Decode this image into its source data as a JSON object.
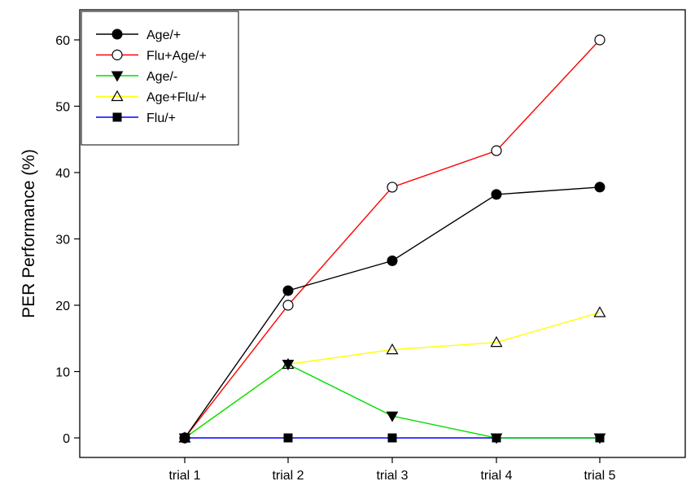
{
  "chart_data": {
    "type": "line",
    "title": "",
    "xlabel": "",
    "ylabel": "PER Performance (%)",
    "categories": [
      "trial 1",
      "trial 2",
      "trial 3",
      "trial 4",
      "trial 5"
    ],
    "ylim": [
      0,
      65
    ],
    "yticks": [
      0,
      10,
      20,
      30,
      40,
      50,
      60
    ],
    "grid": false,
    "legend_position": "top-left",
    "series": [
      {
        "name": "Age/+",
        "color": "#000000",
        "marker": "filled-circle",
        "values": [
          0,
          22.2,
          26.7,
          36.7,
          37.8
        ]
      },
      {
        "name": "Flu+Age/+",
        "color": "#ff0000",
        "marker": "open-circle",
        "values": [
          0,
          20,
          37.8,
          43.3,
          60
        ]
      },
      {
        "name": "Age/-",
        "color": "#00dd00",
        "marker": "filled-triangle-down",
        "values": [
          0,
          11.1,
          3.3,
          0,
          0
        ]
      },
      {
        "name": "Age+Flu/+",
        "color": "#ffff00",
        "marker": "open-triangle-up",
        "values": [
          0,
          11.1,
          13.3,
          14.4,
          18.9
        ]
      },
      {
        "name": "Flu/+",
        "color": "#0000ff",
        "marker": "filled-square",
        "values": [
          0,
          0,
          0,
          0,
          0
        ]
      }
    ]
  }
}
